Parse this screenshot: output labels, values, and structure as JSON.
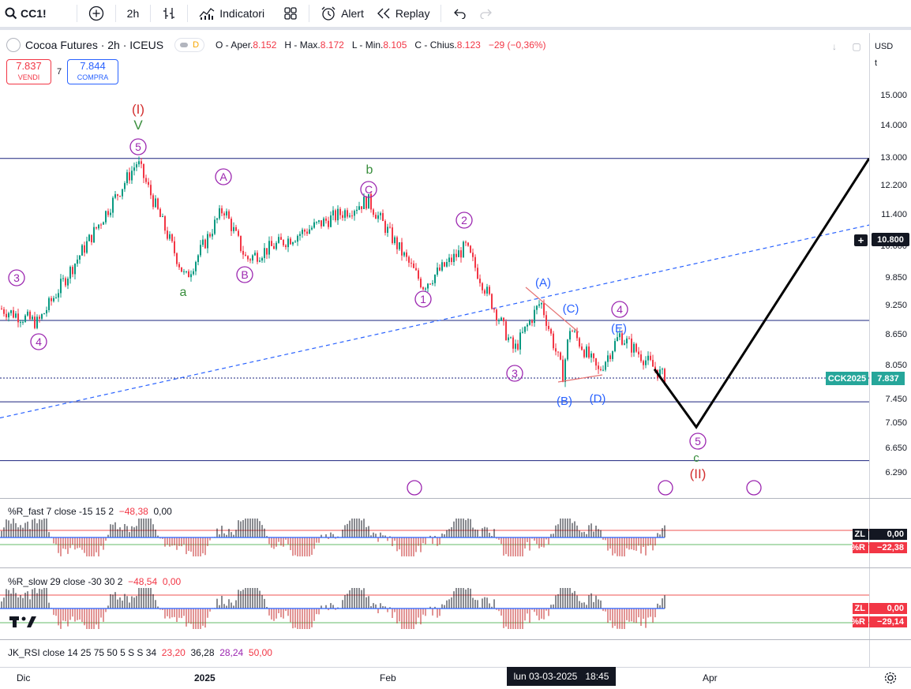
{
  "toolbar": {
    "symbol": "CC1!",
    "interval": "2h",
    "indicators_label": "Indicatori",
    "alert_label": "Alert",
    "replay_label": "Replay"
  },
  "legend": {
    "title": "Cocoa Futures · 2h · ICEUS",
    "badge_letter": "D",
    "open_label": "O - Aper.",
    "open": "8.152",
    "high_label": "H - Max.",
    "high": "8.172",
    "low_label": "L - Min.",
    "low": "8.105",
    "close_label": "C - Chius.",
    "close": "8.123",
    "change": "−29 (−0,36%)"
  },
  "trade": {
    "sell_price": "7.837",
    "sell_label": "VENDI",
    "spread": "7",
    "buy_price": "7.844",
    "buy_label": "COMPRA"
  },
  "price_axis": {
    "currency": "USD",
    "unit": "t",
    "ticks": [
      "15.000",
      "14.000",
      "13.000",
      "12.200",
      "11.400",
      "10.600",
      "9.850",
      "9.250",
      "8.650",
      "8.050",
      "7.450",
      "7.050",
      "6.650",
      "6.290"
    ],
    "crosshair_price": "10.800",
    "last_price": "7.837",
    "last_symbol": "CCK2025"
  },
  "colors": {
    "up": "#089981",
    "down": "#f23645",
    "accent": "#2962ff",
    "wave_purple": "#9c27b0",
    "wave_blue": "#2962ff",
    "wave_green": "#388e3c",
    "wave_red": "#d32f2f",
    "level_line": "#1a237e"
  },
  "time_axis": {
    "labels": [
      "Dic",
      "2025",
      "Feb",
      "Apr"
    ],
    "crosshair_date": "lun 03-03-2025",
    "crosshair_time": "18:45"
  },
  "wave_labels": {
    "primary_I": "(I)",
    "primary_II": "(II)",
    "V": "V",
    "a": "a",
    "b": "b",
    "c": "c",
    "A_circ": "A",
    "B_circ": "B",
    "C_circ": "C",
    "n1": "1",
    "n2": "2",
    "n3": "3",
    "n4": "4",
    "n5": "5",
    "A_paren": "(A)",
    "B_paren": "(B)",
    "C_paren": "(C)",
    "D_paren": "(D)",
    "E_paren": "(E)"
  },
  "indicators": [
    {
      "name": "%R_fast 7 close -15 15 2",
      "v1": "−48,38",
      "v2": "0,00",
      "zl": "0,00",
      "r": "−22,38"
    },
    {
      "name": "%R_slow 29 close -30 30 2",
      "v1": "−48,54",
      "v2": "0,00",
      "zl": "0,00",
      "r": "−29,14"
    },
    {
      "name": "JK_RSI close 14 25 75 50 5 S S 34",
      "v1": "23,20",
      "v2": "36,28",
      "v3": "28,24",
      "v4": "50,00"
    }
  ],
  "chart_data": {
    "type": "candlestick",
    "title": "Cocoa Futures · 2h · ICEUS",
    "x_labels": [
      "Dic",
      "2025",
      "Feb",
      "Apr"
    ],
    "y_ticks": [
      15000,
      14000,
      13000,
      12200,
      11400,
      10600,
      9850,
      9250,
      8650,
      8050,
      7450,
      7050,
      6650,
      6290
    ],
    "y_scale": "log",
    "ylim": [
      6000,
      16000
    ],
    "price_path": [
      {
        "label": "start",
        "price": 9200
      },
      {
        "label": "4",
        "price": 8900
      },
      {
        "label": "5 / (I) / V",
        "price": 12900
      },
      {
        "label": "a",
        "price": 9850
      },
      {
        "label": "A",
        "price": 11600
      },
      {
        "label": "B",
        "price": 10300
      },
      {
        "label": "C / b",
        "price": 11800
      },
      {
        "label": "1",
        "price": 9700
      },
      {
        "label": "2",
        "price": 10600
      },
      {
        "label": "3",
        "price": 8350
      },
      {
        "label": "(A)",
        "price": 9350
      },
      {
        "label": "(B)",
        "price": 7900
      },
      {
        "label": "(C)",
        "price": 8800
      },
      {
        "label": "(D)",
        "price": 7950
      },
      {
        "label": "(E) / 4",
        "price": 8650
      },
      {
        "label": "last",
        "price": 7837
      }
    ],
    "projection": [
      {
        "label": "current",
        "price": 8000
      },
      {
        "label": "5 / c / (II)",
        "price": 7000
      },
      {
        "label": "target",
        "price": 13000
      }
    ],
    "horizontal_levels": [
      13000,
      8950,
      7837,
      7420,
      6480
    ],
    "trendline": {
      "from_price": 7150,
      "to_price": 11150,
      "style": "dashed"
    }
  }
}
